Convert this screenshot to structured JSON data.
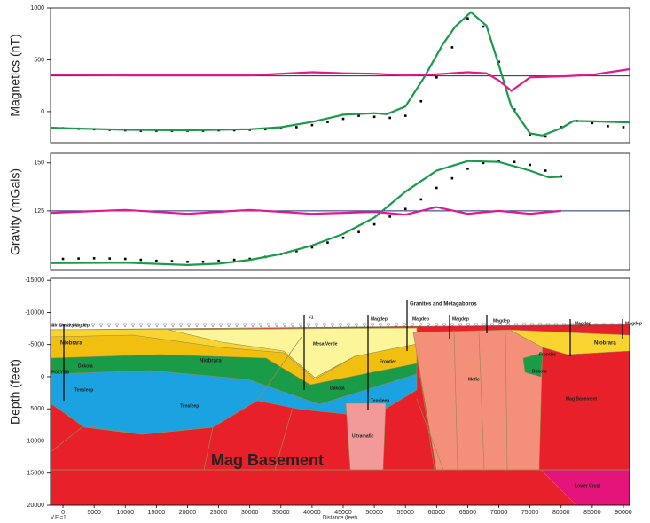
{
  "chart_data": [
    {
      "type": "line",
      "y_label": "Magnetics (nT)",
      "xlim": [
        -2000,
        91000
      ],
      "ylim": [
        -300,
        1000
      ],
      "yticks": [
        0,
        500,
        1000
      ],
      "reference_line": 345,
      "series": [
        {
          "style": "dots",
          "color": "#000000",
          "x": [
            0,
            2500,
            5000,
            7500,
            10000,
            12500,
            15000,
            17500,
            20000,
            22500,
            25000,
            27500,
            30000,
            32500,
            35000,
            37500,
            40000,
            42500,
            45000,
            47500,
            50000,
            52500,
            55000,
            57500,
            60000,
            62500,
            65000,
            67500,
            70000,
            72500,
            75000,
            77500,
            80000,
            82500,
            85000,
            87500,
            90000
          ],
          "values": [
            -160,
            -165,
            -170,
            -175,
            -180,
            -185,
            -185,
            -185,
            -185,
            -185,
            -180,
            -180,
            -175,
            -170,
            -160,
            -150,
            -130,
            -100,
            -70,
            -40,
            -50,
            -60,
            -40,
            100,
            330,
            620,
            900,
            820,
            480,
            20,
            -220,
            -240,
            -150,
            -90,
            -110,
            -140,
            -150
          ]
        },
        {
          "style": "line",
          "color": "#1a9a4a",
          "x": [
            -2000,
            0,
            10000,
            20000,
            30000,
            35000,
            40000,
            45000,
            50000,
            52000,
            55000,
            58000,
            61000,
            63000,
            65500,
            68000,
            70000,
            72000,
            75000,
            77000,
            80000,
            82000,
            86000,
            91000
          ],
          "values": [
            -155,
            -160,
            -175,
            -180,
            -170,
            -150,
            -100,
            -30,
            -15,
            -25,
            50,
            330,
            650,
            820,
            960,
            830,
            450,
            50,
            -210,
            -230,
            -160,
            -90,
            -95,
            -105
          ]
        },
        {
          "style": "line",
          "color": "#e0198c",
          "x": [
            -2000,
            10000,
            20000,
            30000,
            40000,
            45000,
            50000,
            55000,
            60000,
            65000,
            68000,
            70000,
            72000,
            75000,
            80000,
            85000,
            91000
          ],
          "values": [
            355,
            350,
            350,
            350,
            380,
            370,
            365,
            350,
            360,
            380,
            370,
            300,
            200,
            330,
            340,
            355,
            410
          ]
        }
      ]
    },
    {
      "type": "line",
      "y_label": "Gravity (mGals)",
      "xlim": [
        -2000,
        91000
      ],
      "ylim": [
        94,
        155
      ],
      "yticks": [
        125,
        150
      ],
      "reference_line": 125,
      "series": [
        {
          "style": "dots",
          "color": "#000000",
          "x": [
            0,
            2500,
            5000,
            7500,
            10000,
            12500,
            15000,
            17500,
            20000,
            22500,
            25000,
            27500,
            30000,
            32500,
            35000,
            37500,
            40000,
            42500,
            45000,
            47500,
            50000,
            52500,
            55000,
            57500,
            60000,
            62500,
            65000,
            67500,
            70000,
            72500,
            75000,
            77500,
            80000
          ],
          "values": [
            100,
            100.2,
            100.3,
            100.2,
            100,
            99.5,
            99,
            98.8,
            98.5,
            98.5,
            99,
            99.5,
            100,
            101,
            102.5,
            104,
            106,
            108.5,
            111,
            114,
            118,
            122,
            126,
            131,
            137,
            142,
            147,
            150,
            151,
            150.5,
            149,
            146,
            143
          ]
        },
        {
          "style": "line",
          "color": "#1a9a4a",
          "x": [
            -2000,
            10000,
            20000,
            25000,
            30000,
            35000,
            40000,
            45000,
            50000,
            55000,
            60000,
            65000,
            70000,
            75000,
            78000,
            80000
          ],
          "values": [
            97.8,
            98,
            96.8,
            97.5,
            99.5,
            102.5,
            107,
            113,
            121.5,
            135,
            146,
            151,
            150.5,
            146,
            142.5,
            142.8
          ]
        },
        {
          "style": "line",
          "color": "#e0198c",
          "x": [
            -2000,
            10000,
            20000,
            30000,
            40000,
            45000,
            50000,
            55000,
            60000,
            65000,
            70000,
            75000,
            80000
          ],
          "values": [
            124,
            125.5,
            123.5,
            125.5,
            123.5,
            124,
            124.5,
            123,
            127,
            123.5,
            125,
            123.5,
            125
          ]
        }
      ]
    },
    {
      "type": "cross-section",
      "y_label": "Depth (feet)",
      "x_label": "Distance (feet)",
      "note": "V.E.=1",
      "xlim": [
        -2000,
        91000
      ],
      "ylim": [
        -15300,
        20000
      ],
      "xticks": [
        0,
        5000,
        10000,
        15000,
        20000,
        25000,
        30000,
        35000,
        40000,
        45000,
        50000,
        55000,
        60000,
        65000,
        70000,
        75000,
        80000,
        85000,
        90000
      ],
      "yticks": [
        -15000,
        -10000,
        -5000,
        0,
        5000,
        10000,
        15000,
        20000
      ],
      "labels": [
        "Granites and Metagabbros",
        "Magdep",
        "Magdep",
        "Magdep",
        "Magdep",
        "Magdep",
        "Magdep",
        "Niobrara",
        "Niobrara",
        "Niobrara",
        "Mesa Verde",
        "Dakota",
        "Dakota",
        "Dakota",
        "Frontier",
        "Frontier",
        "Tensleep",
        "Tensleep",
        "Tensleep",
        "Mafic",
        "Ultramafic",
        "Mag Basement",
        "Mag Basement",
        "Lower Crust",
        "POLY 88",
        "#1",
        "Air Gravity",
        "Magdep"
      ]
    }
  ]
}
